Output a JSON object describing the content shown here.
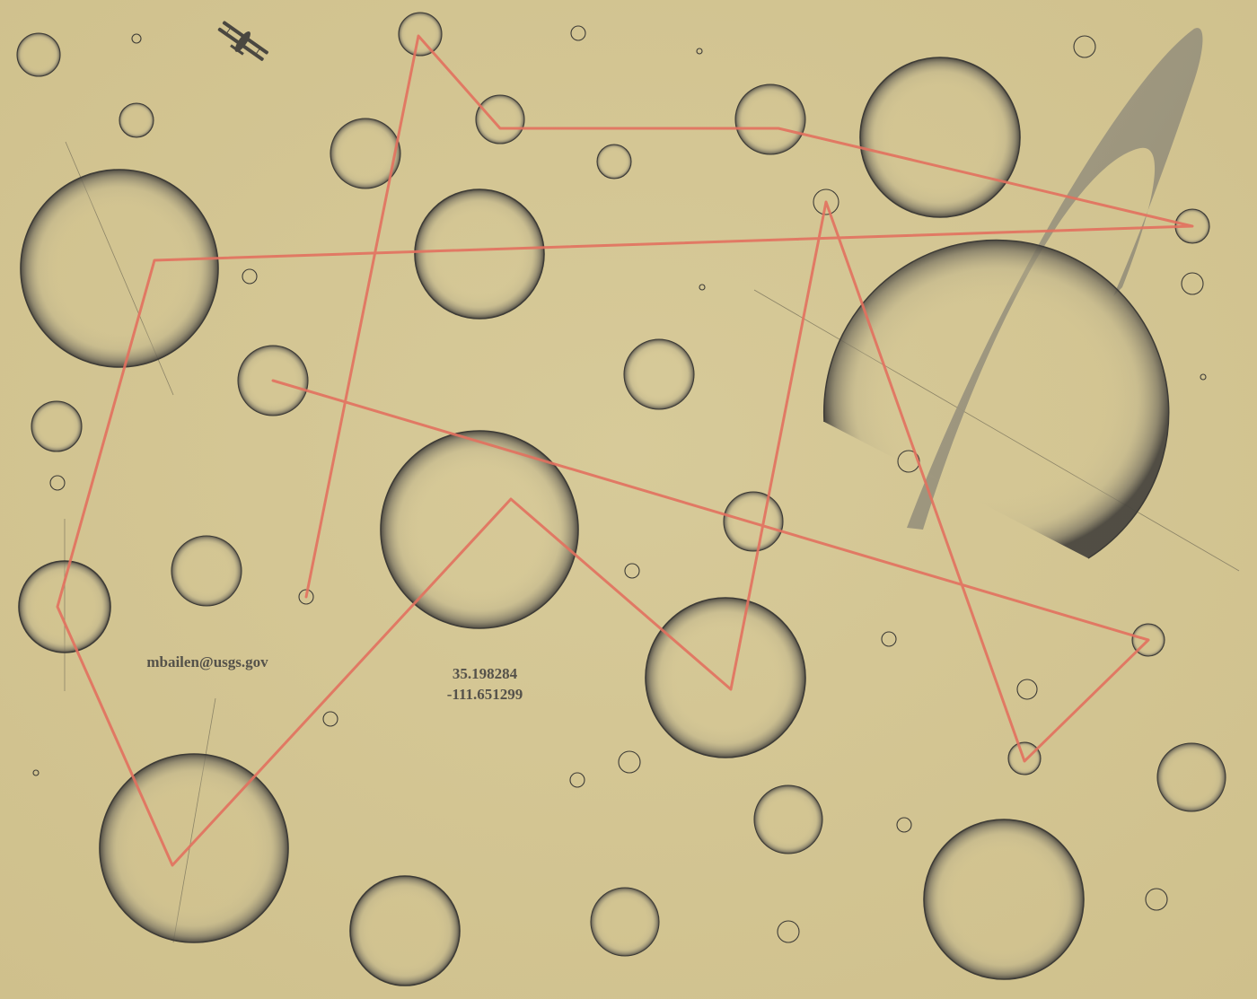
{
  "texts": {
    "email": "mbailen@usgs.gov",
    "latitude": "35.198284",
    "longitude": "-111.651299"
  },
  "icons": {
    "aircraft": "biplane-icon"
  },
  "colors": {
    "background": "#d4c694",
    "circle_stroke": "#3d3b36",
    "path": "#e2705e",
    "ring": "#9d9580"
  }
}
